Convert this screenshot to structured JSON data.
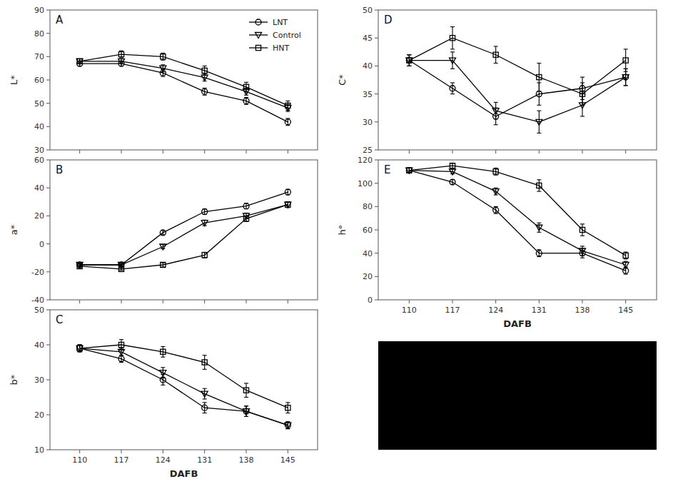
{
  "chart_data": [
    {
      "type": "line",
      "title": "A",
      "ylabel": "L*",
      "x": [
        110,
        117,
        124,
        131,
        138,
        145
      ],
      "xlim": [
        105,
        150
      ],
      "xticks": [
        110,
        117,
        124,
        131,
        138,
        145
      ],
      "ylim": [
        30,
        90
      ],
      "yticks": [
        30,
        40,
        50,
        60,
        70,
        80,
        90
      ],
      "tick_labels": "y",
      "grid": false,
      "legend": "upper right",
      "series": [
        {
          "name": "LNT",
          "color": "#000000",
          "marker": "circle",
          "line_style": "solid",
          "values": [
            67,
            67,
            63,
            55,
            51,
            42
          ],
          "errors": [
            1.0,
            1.0,
            1.5,
            1.5,
            1.5,
            1.5
          ]
        },
        {
          "name": "Control",
          "color": "#000000",
          "marker": "triangle-down",
          "line_style": "solid",
          "values": [
            68,
            68,
            65,
            61,
            55,
            48
          ],
          "errors": [
            1.0,
            1.0,
            1.5,
            1.5,
            1.5,
            1.5
          ]
        },
        {
          "name": "HNT",
          "color": "#000000",
          "marker": "square",
          "line_style": "solid",
          "values": [
            68,
            71,
            70,
            64,
            57,
            49
          ],
          "errors": [
            1.0,
            1.5,
            1.5,
            2.0,
            2.0,
            2.0
          ]
        }
      ]
    },
    {
      "type": "line",
      "title": "B",
      "ylabel": "a*",
      "x": [
        110,
        117,
        124,
        131,
        138,
        145
      ],
      "xlim": [
        105,
        150
      ],
      "xticks": [
        110,
        117,
        124,
        131,
        138,
        145
      ],
      "ylim": [
        -40,
        60
      ],
      "yticks": [
        -40,
        -20,
        0,
        20,
        40,
        60
      ],
      "tick_labels": "y",
      "grid": false,
      "series": [
        {
          "color": "#000000",
          "marker": "circle",
          "line_style": "solid",
          "values": [
            -15,
            -15,
            8,
            23,
            27,
            37
          ],
          "errors": [
            1.0,
            1.0,
            1.5,
            2.0,
            2.0,
            2.0
          ]
        },
        {
          "color": "#000000",
          "marker": "triangle-down",
          "line_style": "solid",
          "values": [
            -15,
            -15,
            -2,
            15,
            20,
            28
          ],
          "errors": [
            1.0,
            1.0,
            1.5,
            2.0,
            2.0,
            2.0
          ]
        },
        {
          "color": "#000000",
          "marker": "square",
          "line_style": "solid",
          "values": [
            -16,
            -18,
            -15,
            -8,
            18,
            28
          ],
          "errors": [
            1.0,
            1.0,
            1.5,
            2.0,
            2.0,
            2.0
          ]
        }
      ]
    },
    {
      "type": "line",
      "title": "C",
      "ylabel": "b*",
      "xlabel": "DAFB",
      "x": [
        110,
        117,
        124,
        131,
        138,
        145
      ],
      "xlim": [
        105,
        150
      ],
      "xticks": [
        110,
        117,
        124,
        131,
        138,
        145
      ],
      "ylim": [
        10,
        50
      ],
      "yticks": [
        10,
        20,
        30,
        40,
        50
      ],
      "grid": false,
      "series": [
        {
          "color": "#000000",
          "marker": "circle",
          "line_style": "solid",
          "values": [
            39,
            36,
            30,
            22,
            21,
            17
          ],
          "errors": [
            1.0,
            1.0,
            1.5,
            1.5,
            1.5,
            1.0
          ]
        },
        {
          "color": "#000000",
          "marker": "triangle-down",
          "line_style": "solid",
          "values": [
            39,
            38,
            32,
            26,
            21,
            17
          ],
          "errors": [
            1.0,
            1.0,
            1.5,
            1.5,
            1.5,
            1.0
          ]
        },
        {
          "color": "#000000",
          "marker": "square",
          "line_style": "solid",
          "values": [
            39,
            40,
            38,
            35,
            27,
            22
          ],
          "errors": [
            1.0,
            1.5,
            1.5,
            2.0,
            2.0,
            1.5
          ]
        }
      ]
    },
    {
      "type": "line",
      "title": "D",
      "ylabel": "C*",
      "x": [
        110,
        117,
        124,
        131,
        138,
        145
      ],
      "xlim": [
        105,
        150
      ],
      "xticks": [
        110,
        117,
        124,
        131,
        138,
        145
      ],
      "ylim": [
        25,
        50
      ],
      "yticks": [
        25,
        30,
        35,
        40,
        45,
        50
      ],
      "tick_labels": "y",
      "grid": false,
      "series": [
        {
          "color": "#000000",
          "marker": "circle",
          "line_style": "solid",
          "values": [
            41,
            36,
            31,
            35,
            36,
            38
          ],
          "errors": [
            1.0,
            1.0,
            1.5,
            2.0,
            2.0,
            1.5
          ]
        },
        {
          "color": "#000000",
          "marker": "triangle-down",
          "line_style": "solid",
          "values": [
            41,
            41,
            32,
            30,
            33,
            38
          ],
          "errors": [
            1.0,
            1.5,
            1.5,
            2.0,
            2.0,
            1.5
          ]
        },
        {
          "color": "#000000",
          "marker": "square",
          "line_style": "solid",
          "values": [
            41,
            45,
            42,
            38,
            35,
            41
          ],
          "errors": [
            1.0,
            2.0,
            1.5,
            2.5,
            2.0,
            2.0
          ]
        }
      ]
    },
    {
      "type": "line",
      "title": "E",
      "ylabel": "h°",
      "xlabel": "DAFB",
      "x": [
        110,
        117,
        124,
        131,
        138,
        145
      ],
      "xlim": [
        105,
        150
      ],
      "xticks": [
        110,
        117,
        124,
        131,
        138,
        145
      ],
      "ylim": [
        0,
        120
      ],
      "yticks": [
        0,
        20,
        40,
        60,
        80,
        100,
        120
      ],
      "grid": false,
      "series": [
        {
          "color": "#000000",
          "marker": "circle",
          "line_style": "solid",
          "values": [
            111,
            101,
            77,
            40,
            40,
            25
          ],
          "errors": [
            2.0,
            2.0,
            3.0,
            3.0,
            4.0,
            3.0
          ]
        },
        {
          "color": "#000000",
          "marker": "triangle-down",
          "line_style": "solid",
          "values": [
            111,
            110,
            93,
            62,
            42,
            30
          ],
          "errors": [
            2.0,
            2.0,
            3.0,
            4.0,
            4.0,
            3.0
          ]
        },
        {
          "color": "#000000",
          "marker": "square",
          "line_style": "solid",
          "values": [
            111,
            115,
            110,
            98,
            60,
            38
          ],
          "errors": [
            2.0,
            2.0,
            3.0,
            5.0,
            5.0,
            3.0
          ]
        }
      ]
    }
  ]
}
